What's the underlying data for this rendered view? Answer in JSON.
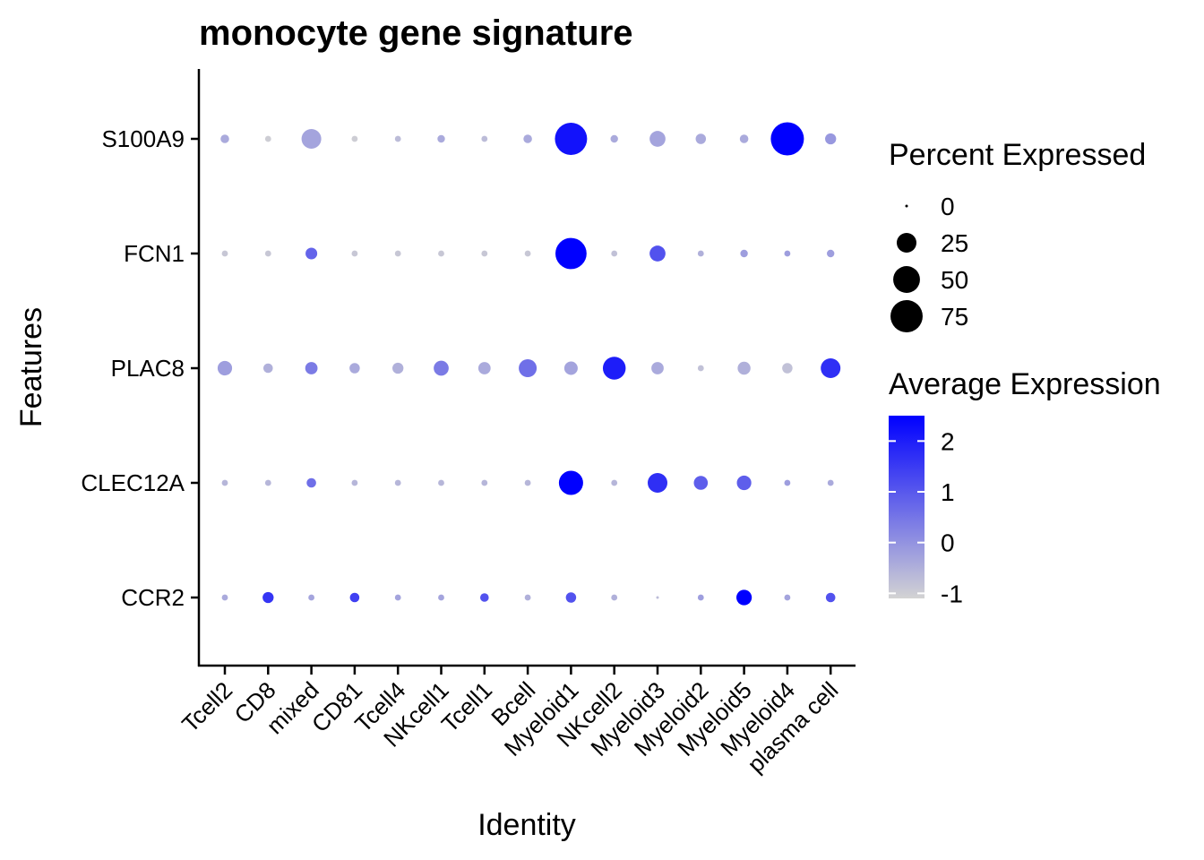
{
  "chart_data": {
    "type": "dot",
    "title": "monocyte gene signature",
    "xlabel": "Identity",
    "ylabel": "Features",
    "categories": [
      "Tcell2",
      "CD8",
      "mixed",
      "CD81",
      "Tcell4",
      "NKcell1",
      "Tcell1",
      "Bcell",
      "Myeloid1",
      "NKcell2",
      "Myeloid3",
      "Myeloid2",
      "Myeloid5",
      "Myeloid4",
      "plasma cell"
    ],
    "features": [
      "S100A9",
      "FCN1",
      "PLAC8",
      "CLEC12A",
      "CCR2"
    ],
    "percent_expressed": [
      [
        3,
        1,
        25,
        1,
        1,
        2,
        1,
        3,
        75,
        2,
        15,
        5,
        3,
        80,
        6
      ],
      [
        1,
        1,
        7,
        1,
        1,
        1,
        1,
        1,
        70,
        1,
        15,
        1,
        2,
        1,
        2
      ],
      [
        12,
        4,
        8,
        5,
        6,
        13,
        8,
        20,
        10,
        35,
        8,
        1,
        9,
        5,
        25
      ],
      [
        1,
        1,
        4,
        1,
        1,
        1,
        1,
        1,
        40,
        1,
        25,
        11,
        12,
        1,
        1
      ],
      [
        1,
        6,
        1,
        4,
        1,
        1,
        3,
        1,
        5,
        1,
        0,
        1,
        14,
        1,
        4
      ]
    ],
    "average_expression": [
      [
        -0.4,
        -1.0,
        -0.3,
        -1.0,
        -0.7,
        -0.4,
        -0.7,
        -0.4,
        2.2,
        -0.4,
        -0.3,
        -0.4,
        -0.4,
        2.5,
        -0.1
      ],
      [
        -0.9,
        -0.9,
        0.8,
        -0.9,
        -0.9,
        -0.9,
        -0.9,
        -0.9,
        2.5,
        -0.8,
        1.1,
        -0.5,
        -0.2,
        -0.2,
        -0.2
      ],
      [
        -0.2,
        -0.5,
        0.4,
        -0.4,
        -0.5,
        0.4,
        -0.4,
        0.6,
        -0.3,
        2.0,
        -0.4,
        -0.8,
        -0.5,
        -0.8,
        1.7
      ],
      [
        -0.6,
        -0.6,
        0.6,
        -0.6,
        -0.6,
        -0.6,
        -0.6,
        -0.6,
        2.5,
        -0.6,
        1.7,
        0.9,
        0.9,
        -0.2,
        -0.4
      ],
      [
        -0.4,
        1.6,
        -0.3,
        1.4,
        -0.3,
        -0.3,
        1.1,
        -0.5,
        1.1,
        -0.5,
        -0.7,
        -0.2,
        2.5,
        -0.3,
        1.1
      ]
    ],
    "legend_size": {
      "title": "Percent Expressed",
      "values": [
        0,
        25,
        50,
        75
      ],
      "labels": [
        "0",
        "25",
        "50",
        "75"
      ]
    },
    "legend_color": {
      "title": "Average Expression",
      "range": [
        -1.1,
        2.5
      ],
      "ticks": [
        -1,
        0,
        1,
        2
      ],
      "labels": [
        "-1",
        "0",
        "1",
        "2"
      ],
      "low_color": "#D3D3D3",
      "high_color": "#0000FF"
    },
    "grid": false
  }
}
